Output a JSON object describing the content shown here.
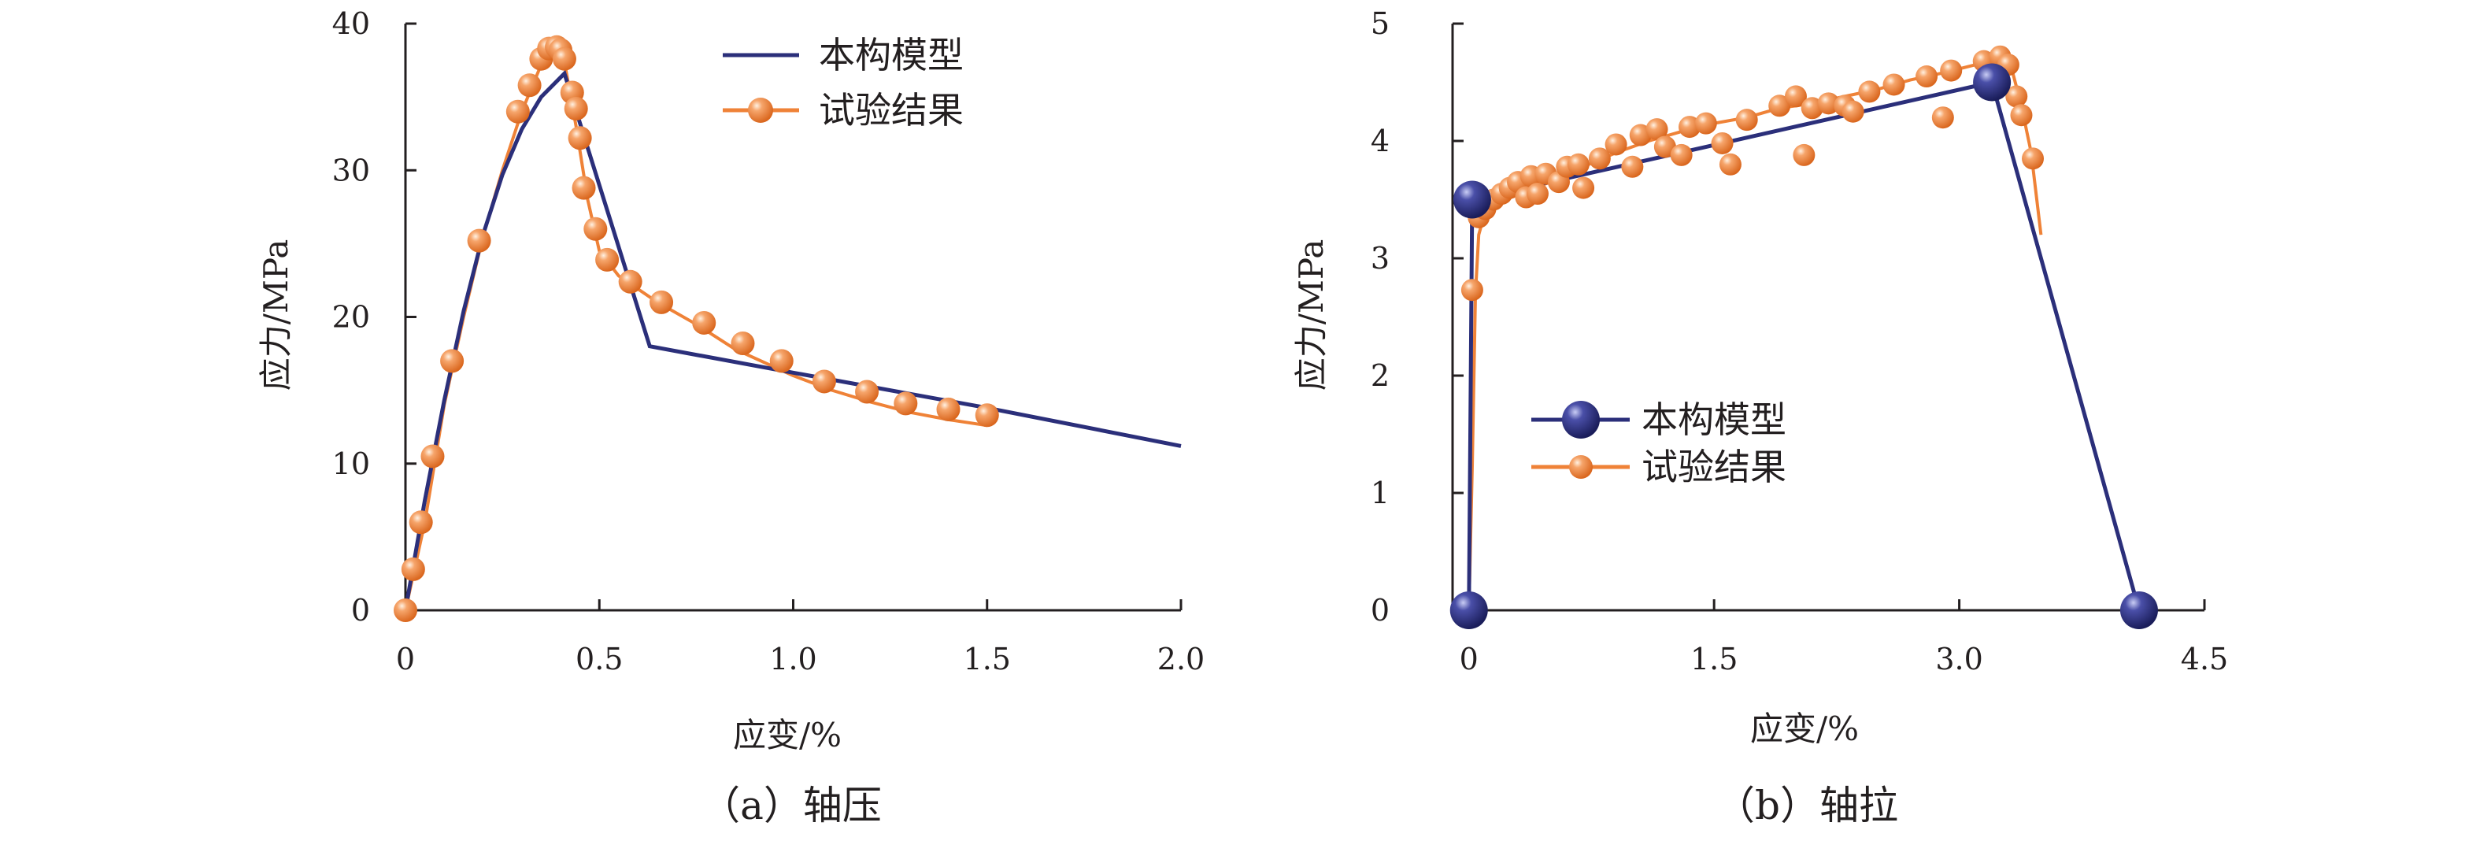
{
  "colors": {
    "model": "#2b2f7a",
    "test": "#ef8237",
    "axis": "#231f20"
  },
  "chart_data": [
    {
      "type": "line",
      "caption": "（a）轴压",
      "xlabel": "应变/%",
      "ylabel": "应力/MPa",
      "xlim": [
        0,
        2.0
      ],
      "ylim": [
        0,
        40
      ],
      "x_ticks": [
        "0",
        "0.5",
        "1.0",
        "1.5",
        "2.0"
      ],
      "y_ticks": [
        "0",
        "10",
        "20",
        "30",
        "40"
      ],
      "legend": {
        "placement": "top-right",
        "entries": [
          "本构模型",
          "试验结果"
        ]
      },
      "series": [
        {
          "name": "本构模型",
          "points": [
            [
              0,
              0
            ],
            [
              0.05,
              7.5
            ],
            [
              0.1,
              14.3
            ],
            [
              0.15,
              20.4
            ],
            [
              0.2,
              25.6
            ],
            [
              0.25,
              29.7
            ],
            [
              0.3,
              32.8
            ],
            [
              0.35,
              35.0
            ],
            [
              0.41,
              36.6
            ],
            [
              0.63,
              18.0
            ],
            [
              1.0,
              16.2
            ],
            [
              1.5,
              13.8
            ],
            [
              2.0,
              11.2
            ]
          ]
        },
        {
          "name": "试验结果",
          "curve": [
            [
              0,
              0
            ],
            [
              0.05,
              6
            ],
            [
              0.1,
              14
            ],
            [
              0.15,
              20
            ],
            [
              0.2,
              25.5
            ],
            [
              0.25,
              30
            ],
            [
              0.3,
              34
            ],
            [
              0.35,
              37.2
            ],
            [
              0.38,
              38.2
            ],
            [
              0.41,
              37.4
            ],
            [
              0.44,
              33
            ],
            [
              0.47,
              28
            ],
            [
              0.5,
              24.5
            ],
            [
              0.55,
              22.8
            ],
            [
              0.65,
              21
            ],
            [
              0.75,
              19.5
            ],
            [
              0.85,
              17.8
            ],
            [
              1.0,
              16
            ],
            [
              1.1,
              15
            ],
            [
              1.2,
              14.2
            ],
            [
              1.3,
              13.5
            ],
            [
              1.4,
              13
            ],
            [
              1.5,
              12.6
            ]
          ],
          "markers": [
            [
              0.0,
              0.0
            ],
            [
              0.02,
              2.8
            ],
            [
              0.04,
              6.0
            ],
            [
              0.07,
              10.5
            ],
            [
              0.12,
              17.0
            ],
            [
              0.19,
              25.2
            ],
            [
              0.29,
              34.0
            ],
            [
              0.32,
              35.8
            ],
            [
              0.35,
              37.6
            ],
            [
              0.37,
              38.3
            ],
            [
              0.39,
              38.4
            ],
            [
              0.4,
              38.2
            ],
            [
              0.41,
              37.6
            ],
            [
              0.43,
              35.3
            ],
            [
              0.44,
              34.2
            ],
            [
              0.45,
              32.2
            ],
            [
              0.46,
              28.8
            ],
            [
              0.49,
              26.0
            ],
            [
              0.52,
              23.9
            ],
            [
              0.58,
              22.4
            ],
            [
              0.66,
              21.0
            ],
            [
              0.77,
              19.6
            ],
            [
              0.87,
              18.2
            ],
            [
              0.97,
              17.0
            ],
            [
              1.08,
              15.6
            ],
            [
              1.19,
              14.9
            ],
            [
              1.29,
              14.1
            ],
            [
              1.4,
              13.7
            ],
            [
              1.5,
              13.3
            ]
          ]
        }
      ]
    },
    {
      "type": "line",
      "caption": "（b）轴拉",
      "xlabel": "应变/%",
      "ylabel": "应力/MPa",
      "xlim": [
        -0.1,
        4.5
      ],
      "ylim": [
        0,
        5
      ],
      "x_ticks": [
        "0",
        "1.5",
        "3.0",
        "4.5"
      ],
      "y_ticks": [
        "0",
        "1",
        "2",
        "3",
        "4",
        "5"
      ],
      "legend": {
        "placement": "center-left",
        "entries": [
          "本构模型",
          "试验结果"
        ]
      },
      "series": [
        {
          "name": "本构模型",
          "points": [
            [
              0,
              0
            ],
            [
              0.02,
              3.5
            ],
            [
              3.2,
              4.5
            ],
            [
              4.1,
              0
            ]
          ],
          "markers": [
            [
              0,
              0
            ],
            [
              0.02,
              3.5
            ],
            [
              3.2,
              4.5
            ],
            [
              4.1,
              0
            ]
          ]
        },
        {
          "name": "试验结果",
          "curve": [
            [
              0,
              0
            ],
            [
              0.02,
              1.2
            ],
            [
              0.04,
              2.7
            ],
            [
              0.06,
              3.2
            ],
            [
              0.1,
              3.4
            ],
            [
              0.3,
              3.55
            ],
            [
              0.5,
              3.65
            ],
            [
              0.7,
              3.78
            ],
            [
              0.9,
              3.9
            ],
            [
              1.1,
              4.0
            ],
            [
              1.3,
              4.08
            ],
            [
              1.5,
              4.15
            ],
            [
              1.7,
              4.2
            ],
            [
              1.9,
              4.28
            ],
            [
              2.1,
              4.32
            ],
            [
              2.3,
              4.38
            ],
            [
              2.5,
              4.44
            ],
            [
              2.7,
              4.52
            ],
            [
              2.9,
              4.58
            ],
            [
              3.1,
              4.65
            ],
            [
              3.25,
              4.7
            ],
            [
              3.32,
              4.62
            ],
            [
              3.38,
              4.3
            ],
            [
              3.44,
              3.9
            ],
            [
              3.5,
              3.2
            ]
          ],
          "markers": [
            [
              0.02,
              2.73
            ],
            [
              0.06,
              3.35
            ],
            [
              0.1,
              3.42
            ],
            [
              0.15,
              3.5
            ],
            [
              0.2,
              3.55
            ],
            [
              0.25,
              3.6
            ],
            [
              0.3,
              3.65
            ],
            [
              0.35,
              3.52
            ],
            [
              0.38,
              3.7
            ],
            [
              0.42,
              3.55
            ],
            [
              0.47,
              3.72
            ],
            [
              0.55,
              3.65
            ],
            [
              0.6,
              3.78
            ],
            [
              0.67,
              3.8
            ],
            [
              0.7,
              3.6
            ],
            [
              0.8,
              3.85
            ],
            [
              0.9,
              3.97
            ],
            [
              1.0,
              3.78
            ],
            [
              1.05,
              4.05
            ],
            [
              1.15,
              4.1
            ],
            [
              1.2,
              3.95
            ],
            [
              1.3,
              3.88
            ],
            [
              1.35,
              4.12
            ],
            [
              1.45,
              4.15
            ],
            [
              1.55,
              3.98
            ],
            [
              1.6,
              3.8
            ],
            [
              1.7,
              4.18
            ],
            [
              1.9,
              4.3
            ],
            [
              2.0,
              4.38
            ],
            [
              2.05,
              3.88
            ],
            [
              2.1,
              4.28
            ],
            [
              2.2,
              4.32
            ],
            [
              2.3,
              4.3
            ],
            [
              2.35,
              4.25
            ],
            [
              2.45,
              4.42
            ],
            [
              2.6,
              4.48
            ],
            [
              2.8,
              4.55
            ],
            [
              2.9,
              4.2
            ],
            [
              2.95,
              4.6
            ],
            [
              3.15,
              4.68
            ],
            [
              3.25,
              4.72
            ],
            [
              3.3,
              4.65
            ],
            [
              3.35,
              4.38
            ],
            [
              3.38,
              4.22
            ],
            [
              3.45,
              3.85
            ]
          ]
        }
      ]
    }
  ]
}
